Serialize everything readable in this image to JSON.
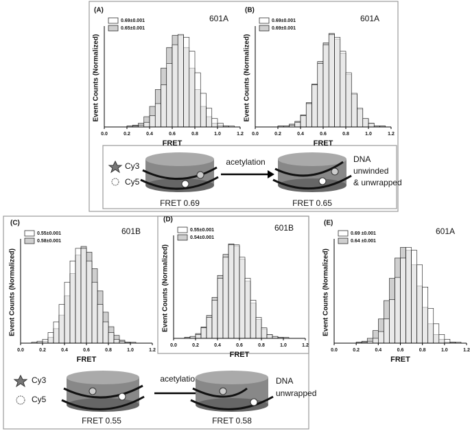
{
  "chart_data": [
    {
      "type": "histogram",
      "label": "(A)",
      "title": "601A",
      "xlabel": "FRET",
      "ylabel": "Event Counts (Normalized)",
      "bins": [
        0,
        0.05,
        0.1,
        0.15,
        0.2,
        0.25,
        0.3,
        0.35,
        0.4,
        0.45,
        0.5,
        0.55,
        0.6,
        0.65,
        0.7,
        0.75,
        0.8,
        0.85,
        0.9,
        0.95,
        1.0,
        1.05,
        1.1,
        1.15,
        1.2
      ],
      "series": [
        {
          "name": "0.69±0.001",
          "color": "#ffffff",
          "values": [
            0,
            0,
            0,
            0,
            0.01,
            0.01,
            0.02,
            0.05,
            0.12,
            0.25,
            0.45,
            0.68,
            0.88,
            0.99,
            0.96,
            0.81,
            0.58,
            0.36,
            0.2,
            0.09,
            0.04,
            0.01,
            0.01,
            0
          ]
        },
        {
          "name": "0.65±0.001",
          "color": "#cfcfcf",
          "values": [
            0,
            0,
            0,
            0,
            0.01,
            0.02,
            0.04,
            0.11,
            0.22,
            0.4,
            0.63,
            0.85,
            0.98,
            0.98,
            0.85,
            0.63,
            0.4,
            0.22,
            0.11,
            0.04,
            0.02,
            0.01,
            0,
            0
          ]
        }
      ],
      "xlim": [
        0,
        1.2
      ],
      "ylim": [
        0,
        1.05
      ],
      "xticks": [
        {
          "value": 0,
          "label": "0.0"
        },
        0.2,
        0.4,
        0.6,
        0.8,
        {
          "value": 1,
          "label": "1.0"
        },
        1.2
      ]
    },
    {
      "type": "histogram",
      "label": "(B)",
      "title": "601A",
      "xlabel": "FRET",
      "ylabel": "Event Counts (Normalized)",
      "bins": [
        0,
        0.05,
        0.1,
        0.15,
        0.2,
        0.25,
        0.3,
        0.35,
        0.4,
        0.45,
        0.5,
        0.55,
        0.6,
        0.65,
        0.7,
        0.75,
        0.8,
        0.85,
        0.9,
        0.95,
        1.0,
        1.05,
        1.1,
        1.15,
        1.2
      ],
      "series": [
        {
          "name": "0.69±0.001",
          "color": "#ffffff",
          "values": [
            0,
            0,
            0,
            0,
            0.01,
            0.01,
            0.02,
            0.05,
            0.12,
            0.25,
            0.45,
            0.68,
            0.88,
            0.99,
            0.96,
            0.81,
            0.58,
            0.36,
            0.2,
            0.09,
            0.04,
            0.01,
            0.01,
            0
          ]
        },
        {
          "name": "0.69±0.001",
          "color": "#cfcfcf",
          "values": [
            0,
            0,
            0,
            0,
            0.01,
            0.01,
            0.03,
            0.06,
            0.13,
            0.26,
            0.46,
            0.7,
            0.9,
            1.0,
            0.94,
            0.79,
            0.56,
            0.35,
            0.19,
            0.09,
            0.04,
            0.01,
            0.01,
            0
          ]
        }
      ],
      "xlim": [
        0,
        1.2
      ],
      "ylim": [
        0,
        1.05
      ],
      "xticks": [
        {
          "value": 0,
          "label": "0.0"
        },
        0.2,
        0.4,
        0.6,
        0.8,
        {
          "value": 1,
          "label": "1.0"
        },
        1.2
      ]
    },
    {
      "type": "histogram",
      "label": "(C)",
      "title": "601B",
      "xlabel": "FRET",
      "ylabel": "Event Counts (Normalized)",
      "bins": [
        0,
        0.05,
        0.1,
        0.15,
        0.2,
        0.25,
        0.3,
        0.35,
        0.4,
        0.45,
        0.5,
        0.55,
        0.6,
        0.65,
        0.7,
        0.75,
        0.8,
        0.85,
        0.9,
        0.95,
        1.0,
        1.05,
        1.1,
        1.15,
        1.2
      ],
      "series": [
        {
          "name": "0.55±0.001",
          "color": "#ffffff",
          "values": [
            0,
            0,
            0.01,
            0.02,
            0.04,
            0.11,
            0.22,
            0.4,
            0.63,
            0.85,
            0.98,
            0.98,
            0.85,
            0.63,
            0.4,
            0.22,
            0.11,
            0.04,
            0.02,
            0.01,
            0.01,
            0,
            0,
            0
          ]
        },
        {
          "name": "0.58±0.001",
          "color": "#cfcfcf",
          "values": [
            0,
            0,
            0,
            0.01,
            0.02,
            0.06,
            0.15,
            0.29,
            0.49,
            0.72,
            0.91,
            1.0,
            0.94,
            0.77,
            0.54,
            0.32,
            0.17,
            0.08,
            0.03,
            0.01,
            0,
            0,
            0,
            0
          ]
        }
      ],
      "xlim": [
        0,
        1.2
      ],
      "ylim": [
        0,
        1.05
      ],
      "xticks": [
        {
          "value": 0,
          "label": "0.0"
        },
        0.2,
        0.4,
        0.6,
        0.8,
        {
          "value": 1,
          "label": "1.0"
        },
        1.2
      ]
    },
    {
      "type": "histogram",
      "label": "(D)",
      "title": "601B",
      "xlabel": "FRET",
      "ylabel": "Event Counts (Normalized)",
      "bins": [
        0,
        0.05,
        0.1,
        0.15,
        0.2,
        0.25,
        0.3,
        0.35,
        0.4,
        0.45,
        0.5,
        0.55,
        0.6,
        0.65,
        0.7,
        0.75,
        0.8,
        0.85,
        0.9,
        0.95,
        1.0,
        1.05,
        1.1,
        1.15,
        1.2
      ],
      "series": [
        {
          "name": "0.55±0.001",
          "color": "#ffffff",
          "values": [
            0,
            0,
            0.01,
            0.02,
            0.04,
            0.11,
            0.22,
            0.4,
            0.63,
            0.85,
            0.98,
            0.98,
            0.85,
            0.63,
            0.4,
            0.22,
            0.11,
            0.04,
            0.02,
            0.01,
            0.01,
            0,
            0,
            0
          ]
        },
        {
          "name": "0.54±0.001",
          "color": "#cfcfcf",
          "values": [
            0,
            0,
            0.01,
            0.02,
            0.05,
            0.12,
            0.24,
            0.43,
            0.66,
            0.88,
            0.99,
            0.97,
            0.83,
            0.6,
            0.37,
            0.2,
            0.1,
            0.04,
            0.02,
            0.01,
            0,
            0,
            0,
            0
          ]
        }
      ],
      "xlim": [
        0,
        1.2
      ],
      "ylim": [
        0,
        1.05
      ],
      "xticks": [
        {
          "value": 0,
          "label": "0.0"
        },
        0.2,
        0.4,
        0.6,
        0.8,
        {
          "value": 1,
          "label": "1.0"
        },
        1.2
      ]
    },
    {
      "type": "histogram",
      "label": "(E)",
      "title": "601A",
      "xlabel": "FRET",
      "ylabel": "Event Counts (Normalized)",
      "bins": [
        0,
        0.05,
        0.1,
        0.15,
        0.2,
        0.25,
        0.3,
        0.35,
        0.4,
        0.45,
        0.5,
        0.55,
        0.6,
        0.65,
        0.7,
        0.75,
        0.8,
        0.85,
        0.9,
        0.95,
        1.0,
        1.05,
        1.1,
        1.15,
        1.2
      ],
      "series": [
        {
          "name": "0.69 ±0.001",
          "color": "#ffffff",
          "values": [
            0,
            0,
            0,
            0,
            0.01,
            0.01,
            0.02,
            0.05,
            0.12,
            0.25,
            0.45,
            0.68,
            0.88,
            0.99,
            0.96,
            0.81,
            0.58,
            0.36,
            0.2,
            0.09,
            0.04,
            0.01,
            0.01,
            0
          ]
        },
        {
          "name": "0.64 ±0.001",
          "color": "#cfcfcf",
          "values": [
            0,
            0,
            0,
            0,
            0.01,
            0.02,
            0.05,
            0.13,
            0.25,
            0.44,
            0.67,
            0.88,
            0.99,
            0.96,
            0.81,
            0.59,
            0.37,
            0.2,
            0.09,
            0.04,
            0.01,
            0.01,
            0,
            0
          ]
        }
      ],
      "xlim": [
        0,
        1.2
      ],
      "ylim": [
        0,
        1.05
      ],
      "xticks": [
        {
          "value": 0,
          "label": "0.0"
        },
        0.2,
        0.4,
        0.6,
        0.8,
        {
          "value": 1,
          "label": "1.0"
        },
        1.2
      ]
    }
  ],
  "schematics": [
    {
      "cy3": "Cy3",
      "cy5": "Cy5",
      "arrow_label": "acetylation",
      "note": [
        "DNA",
        "unwinded",
        "& unwrapped"
      ],
      "before": "FRET 0.69",
      "after": "FRET 0.65"
    },
    {
      "cy3": "Cy3",
      "cy5": "Cy5",
      "arrow_label": "acetylation",
      "note": [
        "DNA",
        "unwrapped"
      ],
      "before": "FRET 0.55",
      "after": "FRET 0.58"
    }
  ]
}
